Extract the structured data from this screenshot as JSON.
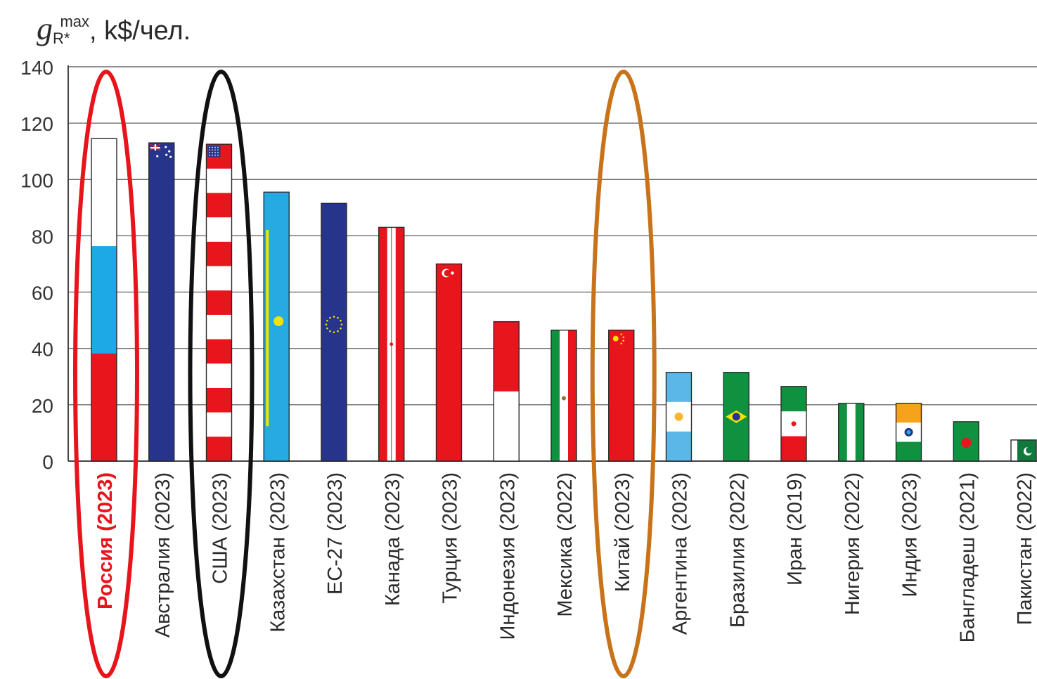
{
  "chart_data": {
    "type": "bar",
    "ylabel": {
      "symbol": "g",
      "subscript": "R*",
      "superscript": "max",
      "unit": ", k$/чел."
    },
    "ylim": [
      0,
      140
    ],
    "yticks": [
      "0",
      "20",
      "40",
      "60",
      "80",
      "100",
      "120",
      "140"
    ],
    "grid": true,
    "categories": [
      "Россия (2023)",
      "Австралия (2023)",
      "США (2023)",
      "Казахстан (2023)",
      "ЕС-27 (2023)",
      "Канада (2023)",
      "Турция (2023)",
      "Индонезия (2023)",
      "Мексика (2022)",
      "Китай (2023)",
      "Аргентина (2023)",
      "Бразилия (2022)",
      "Иран (2019)",
      "Нигерия (2022)",
      "Индия (2023)",
      "Бангладеш (2021)",
      "Пакистан (2022)"
    ],
    "values": [
      114.5,
      113,
      112.5,
      95.5,
      91.5,
      83,
      70,
      49.5,
      46.5,
      46.5,
      31.5,
      31.5,
      26.5,
      20.5,
      20.5,
      14,
      7.5
    ],
    "flags": [
      "russia",
      "australia",
      "usa",
      "kazakhstan",
      "eu",
      "canada",
      "turkey",
      "indonesia",
      "mexico",
      "china",
      "argentina",
      "brazil",
      "iran",
      "nigeria",
      "india",
      "bangladesh",
      "pakistan"
    ],
    "highlight": [
      {
        "category": "Россия (2023)",
        "color": "#e8141b"
      },
      {
        "category": "США (2023)",
        "color": "#111111"
      },
      {
        "category": "Китай (2023)",
        "color": "#c8731a"
      }
    ],
    "highlight_label_color": "#e8141b"
  }
}
